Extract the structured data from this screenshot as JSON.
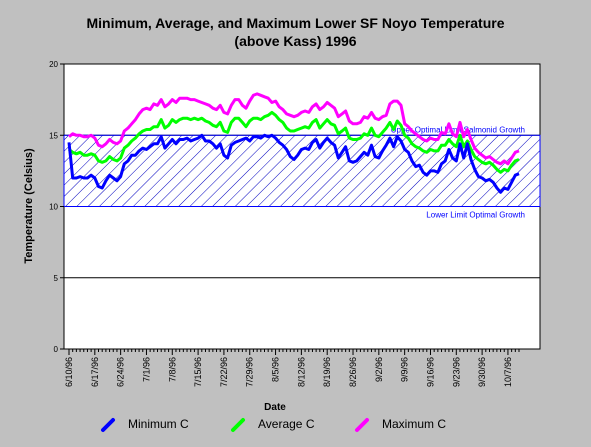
{
  "chart_data": {
    "type": "line",
    "title_lines": [
      "Minimum, Average, and Maximum Lower SF Noyo Temperature",
      "(above Kass) 1996"
    ],
    "xlabel": "Date",
    "ylabel": "Temperature (Celsius)",
    "ylim": [
      0,
      20
    ],
    "yticks": [
      0,
      5,
      10,
      15,
      20
    ],
    "grid": "horizontal",
    "xrange_days": [
      0,
      122
    ],
    "x_tick_labels": [
      "6/10/96",
      "6/17/96",
      "6/24/96",
      "7/1/96",
      "7/8/96",
      "7/15/96",
      "7/22/96",
      "7/29/96",
      "8/5/96",
      "8/12/96",
      "8/19/96",
      "8/26/96",
      "9/2/96",
      "9/9/96",
      "9/16/96",
      "9/23/96",
      "9/30/96",
      "10/7/96"
    ],
    "optimal_band": {
      "lower": 10,
      "upper": 15,
      "upper_label": "Upper Optimal Limit Salmonid Growth",
      "lower_label": "Lower Limit Optimal Growth"
    },
    "x": [
      0,
      1,
      2,
      3,
      4,
      5,
      6,
      7,
      8,
      9,
      10,
      11,
      12,
      13,
      14,
      15,
      16,
      17,
      18,
      19,
      20,
      21,
      22,
      23,
      24,
      25,
      26,
      27,
      28,
      29,
      30,
      31,
      32,
      33,
      34,
      35,
      36,
      37,
      38,
      39,
      40,
      41,
      42,
      43,
      44,
      45,
      46,
      47,
      48,
      49,
      50,
      51,
      52,
      53,
      54,
      55,
      56,
      57,
      58,
      59,
      60,
      61,
      62,
      63,
      64,
      65,
      66,
      67,
      68,
      69,
      70,
      71,
      72,
      73,
      74,
      75,
      76,
      77,
      78,
      79,
      80,
      81,
      82,
      83,
      84,
      85,
      86,
      87,
      88,
      89,
      90,
      91,
      92,
      93,
      94,
      95,
      96,
      97,
      98,
      99,
      100,
      101,
      102,
      103,
      104,
      105,
      106,
      107,
      108,
      109,
      110,
      111,
      112,
      113,
      114,
      115,
      116,
      117,
      118,
      119,
      120,
      121,
      122
    ],
    "series": [
      {
        "name": "Minimum C",
        "color": "#0000ff",
        "values": [
          14.5,
          12,
          12,
          12.1,
          12,
          12,
          12.2,
          12,
          11.4,
          11.3,
          11.8,
          12.2,
          12,
          11.8,
          12.1,
          13,
          13.2,
          13.6,
          13.6,
          13.9,
          14.1,
          14,
          14.2,
          14.4,
          14.4,
          14.9,
          14.1,
          14.4,
          14.7,
          14.4,
          14.7,
          14.7,
          14.8,
          14.6,
          14.7,
          14.8,
          15,
          14.6,
          14.6,
          14.4,
          14.1,
          14.4,
          13.6,
          13.4,
          14.3,
          14.5,
          14.6,
          14.7,
          14.8,
          14.6,
          14.9,
          14.9,
          14.8,
          15,
          14.9,
          15,
          14.8,
          14.5,
          14.3,
          14,
          13.5,
          13.3,
          13.6,
          14,
          14.1,
          14,
          14.5,
          14.7,
          14.1,
          14.5,
          14.8,
          14.5,
          14.3,
          13.4,
          13.8,
          14.2,
          13.2,
          13.1,
          13.2,
          13.5,
          13.8,
          13.6,
          14.3,
          13.5,
          13.4,
          13.9,
          14.3,
          14.8,
          14.2,
          14.9,
          14.6,
          14,
          13.8,
          13.2,
          12.8,
          12.9,
          12.4,
          12.2,
          12.5,
          12.5,
          12.4,
          13,
          13.2,
          14,
          13.4,
          13.2,
          14.4,
          13.4,
          14.4,
          13.3,
          12.6,
          12.1,
          12,
          11.8,
          11.9,
          11.7,
          11.3,
          11,
          11.3,
          11.2,
          11.7,
          12.2,
          12.3
        ]
      },
      {
        "name": "Average C",
        "color": "#00ff00",
        "values": [
          14,
          13.8,
          13.7,
          13.8,
          13.6,
          13.6,
          13.7,
          13.6,
          13.2,
          13.1,
          13.2,
          13.5,
          13.3,
          13.2,
          13.4,
          14.1,
          14.3,
          14.6,
          14.8,
          15.1,
          15.3,
          15.4,
          15.4,
          15.6,
          15.6,
          16.1,
          15.5,
          15.7,
          16.1,
          15.9,
          16.1,
          16.2,
          16.2,
          16.1,
          16.2,
          16.1,
          16.2,
          16,
          15.9,
          15.7,
          15.6,
          15.9,
          15.3,
          15.2,
          15.9,
          16.2,
          16.2,
          15.9,
          15.6,
          16,
          16.2,
          16.2,
          16.1,
          16.3,
          16.4,
          16.6,
          16.4,
          16.1,
          15.9,
          15.5,
          15.3,
          15.3,
          15.4,
          15.5,
          15.6,
          15.5,
          15.9,
          16.1,
          15.5,
          15.8,
          16.1,
          15.8,
          15.7,
          15.1,
          15.3,
          15.5,
          14.8,
          14.7,
          14.7,
          14.8,
          15.1,
          15,
          15.5,
          15,
          14.9,
          15.2,
          15.5,
          15.9,
          15.4,
          16,
          15.7,
          15,
          14.8,
          14.4,
          14.2,
          14.1,
          13.9,
          13.8,
          14,
          13.9,
          13.9,
          14.3,
          14.3,
          14.7,
          14.4,
          14.2,
          15,
          14.2,
          14.6,
          14,
          13.5,
          13.3,
          13.1,
          13,
          13.1,
          12.9,
          12.6,
          12.4,
          12.6,
          12.5,
          12.9,
          13.2,
          13.3
        ]
      },
      {
        "name": "Maximum C",
        "color": "#ff00ff",
        "values": [
          14.9,
          15.1,
          15,
          15,
          14.9,
          14.9,
          15,
          14.8,
          14.3,
          14.2,
          14.4,
          14.7,
          14.5,
          14.4,
          14.6,
          15.3,
          15.5,
          15.8,
          16.1,
          16.5,
          16.8,
          16.9,
          16.8,
          17.2,
          17.1,
          17.5,
          17,
          17.2,
          17.5,
          17.3,
          17.6,
          17.6,
          17.6,
          17.5,
          17.5,
          17.4,
          17.3,
          17.2,
          17.1,
          16.9,
          16.8,
          17.1,
          16.6,
          16.5,
          17.1,
          17.5,
          17.5,
          17.1,
          16.9,
          17.4,
          17.8,
          17.9,
          17.8,
          17.7,
          17.6,
          17.3,
          17.4,
          17,
          16.8,
          16.5,
          16.4,
          16.3,
          16.4,
          16.6,
          16.7,
          16.6,
          17,
          17.2,
          16.8,
          17,
          17.3,
          17.1,
          16.9,
          16.3,
          16.5,
          16.7,
          16,
          15.8,
          15.8,
          15.9,
          16.3,
          16.2,
          16.6,
          16.2,
          16.1,
          16.3,
          16.4,
          17.2,
          17.4,
          17.4,
          17.1,
          15.8,
          15.6,
          15.3,
          15.1,
          14.9,
          14.7,
          14.6,
          14.8,
          14.7,
          14.7,
          15.2,
          15.1,
          15.8,
          15.1,
          14.9,
          15.9,
          14.9,
          15.4,
          14.7,
          14.1,
          13.8,
          13.6,
          13.4,
          13.5,
          13.3,
          13.1,
          13,
          13.2,
          13,
          13.4,
          13.8,
          13.9
        ]
      }
    ]
  },
  "legend": [
    "Minimum C",
    "Average C",
    "Maximum C"
  ]
}
